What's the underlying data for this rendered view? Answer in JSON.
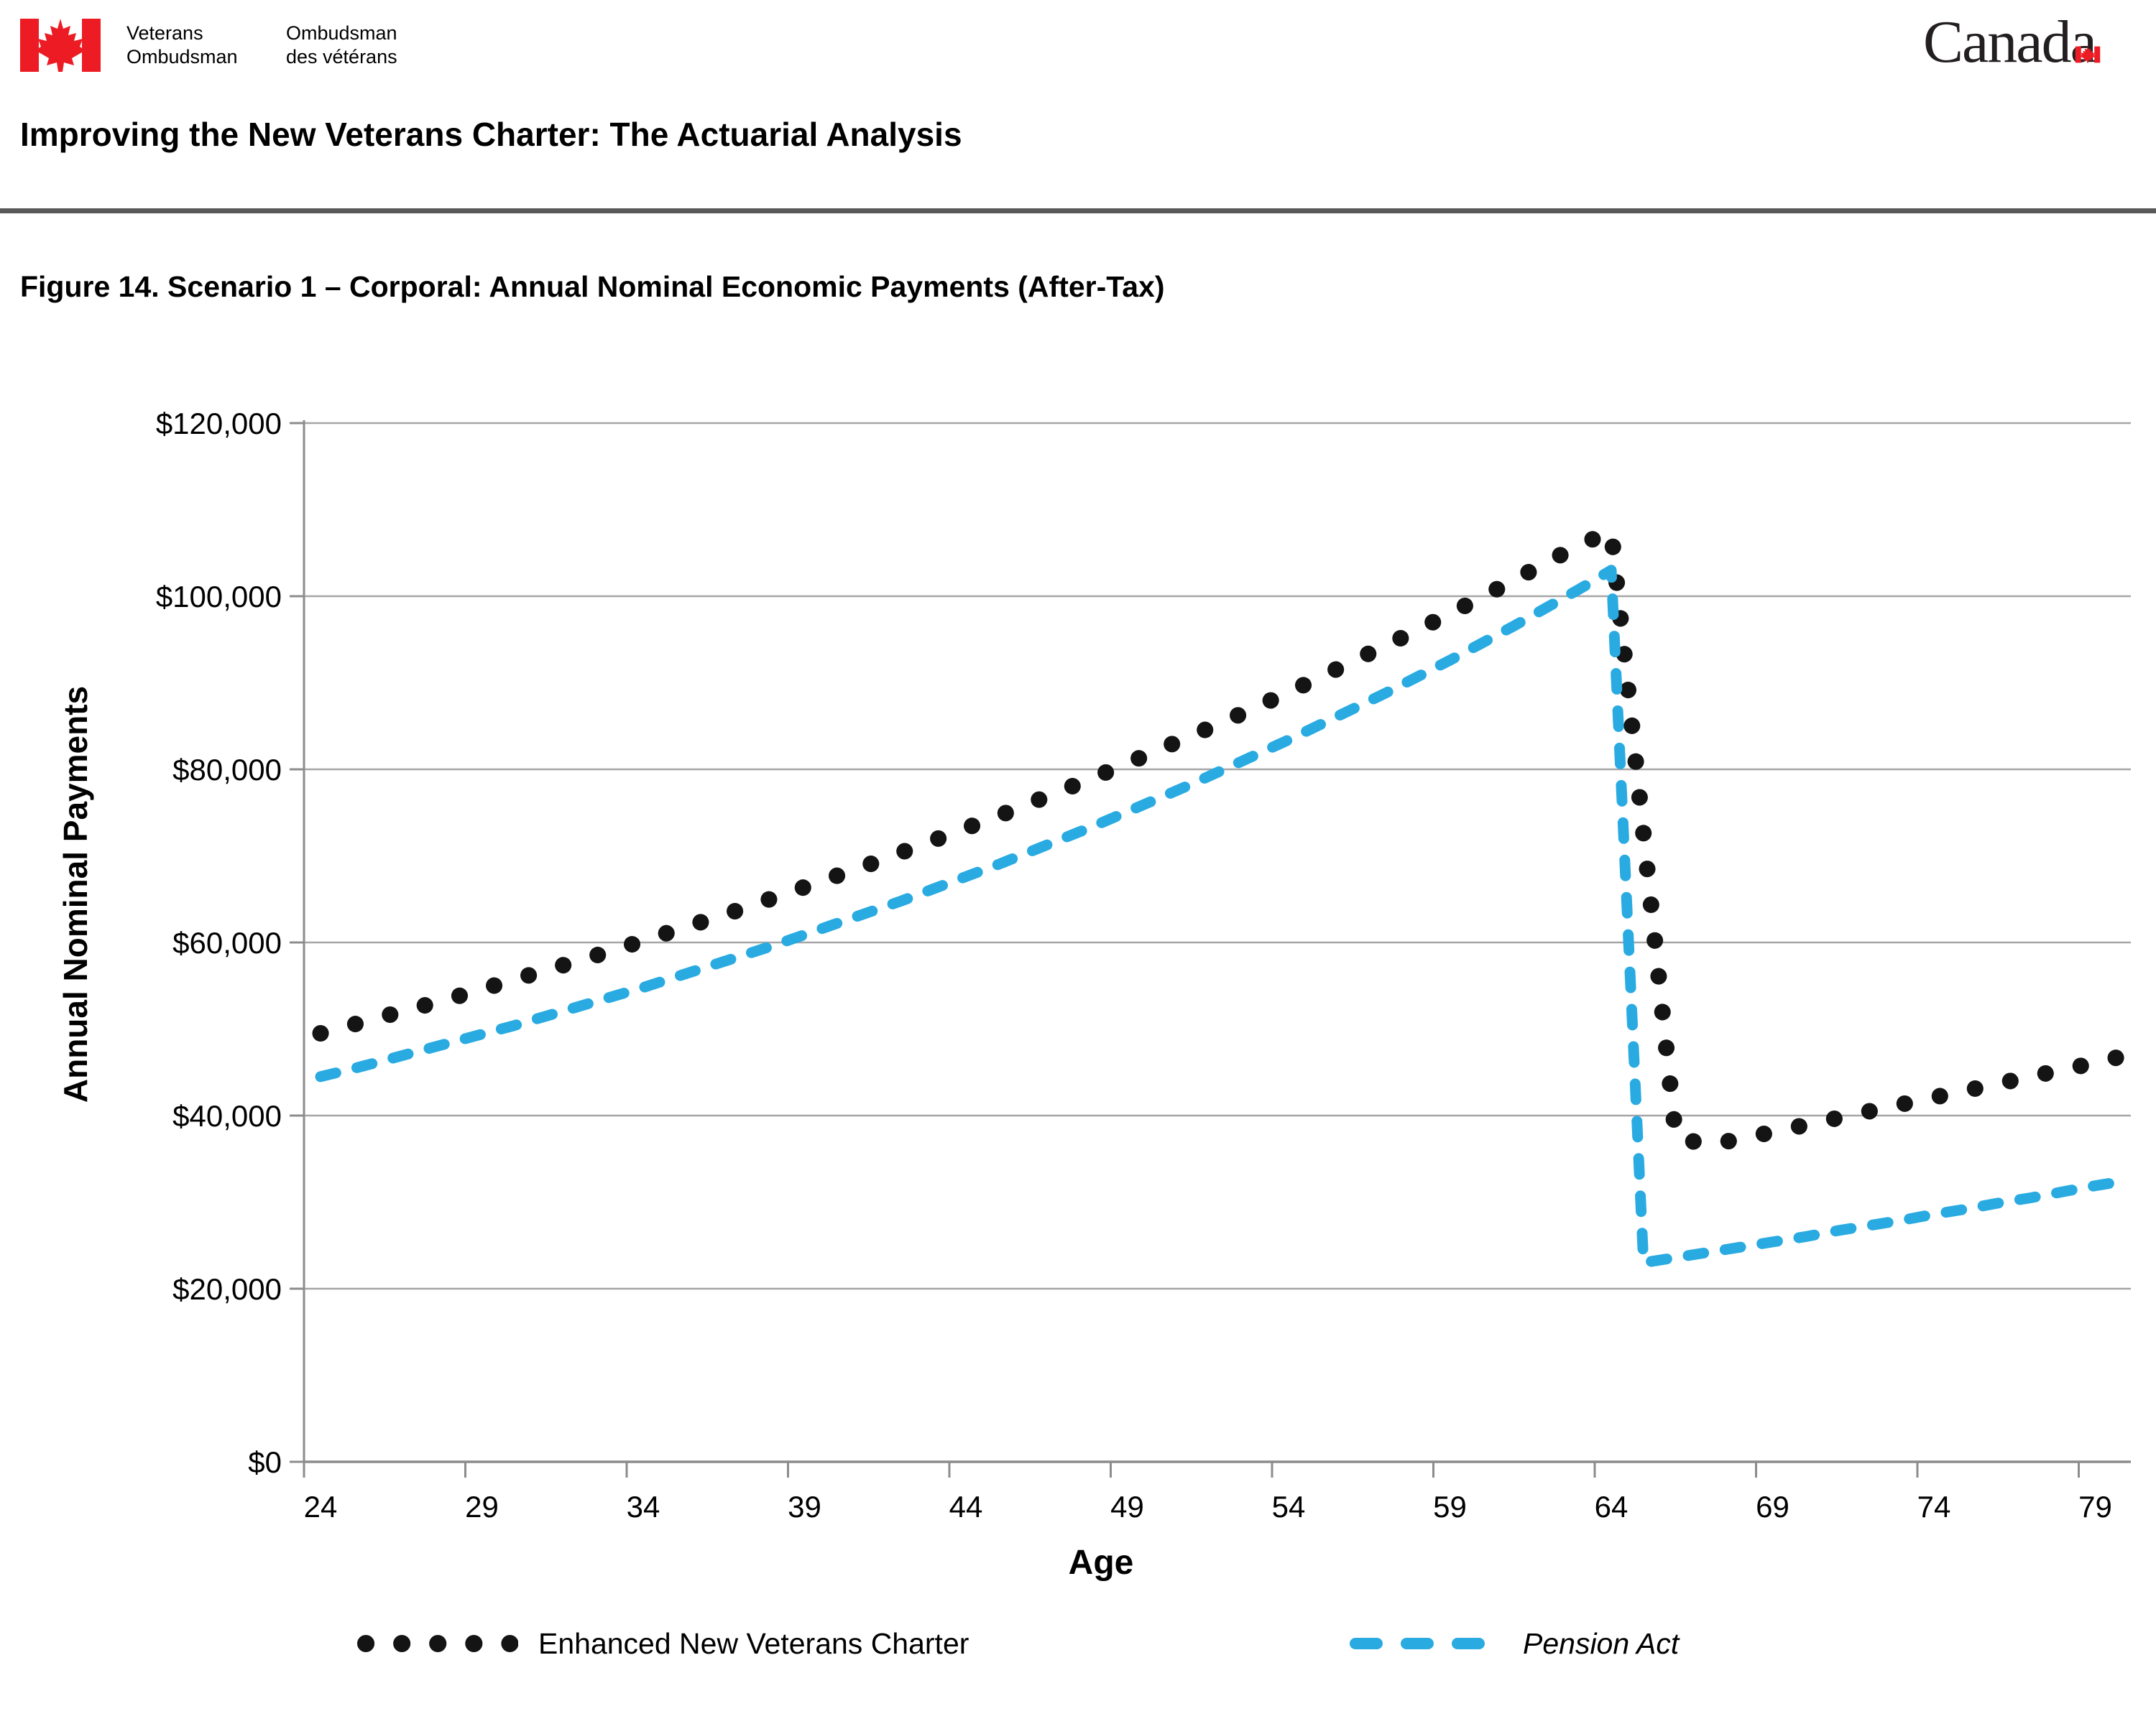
{
  "header": {
    "logo": {
      "en_line1": "Veterans",
      "en_line2": "Ombudsman",
      "fr_line1": "Ombudsman",
      "fr_line2": "des vétérans"
    },
    "wordmark": "Canada"
  },
  "title": "Improving the New Veterans Charter: The Actuarial Analysis",
  "figure_caption": "Figure 14. Scenario 1 – Corporal: Annual Nominal Economic Payments (After-Tax)",
  "colors": {
    "series_envc": "#141414",
    "series_pension_act": "#29ABE2",
    "gridline": "#A6A6A6",
    "axis": "#8C8C8C",
    "flag_red": "#ED1C24",
    "rule_gray": "#595959"
  },
  "chart_data": {
    "type": "line",
    "title": "",
    "xlabel": "Age",
    "ylabel": "Annual Nominal Payments",
    "grid": true,
    "legend_position": "bottom",
    "xlim": [
      24,
      80
    ],
    "ylim": [
      0,
      120000
    ],
    "x_tick_labels": [
      "24",
      "29",
      "34",
      "39",
      "44",
      "49",
      "54",
      "59",
      "64",
      "69",
      "74",
      "79"
    ],
    "y_tick_values": [
      0,
      20000,
      40000,
      60000,
      80000,
      100000,
      120000
    ],
    "y_tick_labels": [
      "$0",
      "$20,000",
      "$40,000",
      "$60,000",
      "$80,000",
      "$100,000",
      "$120,000"
    ],
    "x": [
      24,
      25,
      26,
      27,
      28,
      29,
      30,
      31,
      32,
      33,
      34,
      35,
      36,
      37,
      38,
      39,
      40,
      41,
      42,
      43,
      44,
      45,
      46,
      47,
      48,
      49,
      50,
      51,
      52,
      53,
      54,
      55,
      56,
      57,
      58,
      59,
      60,
      61,
      62,
      63,
      64,
      65,
      66,
      67,
      68,
      69,
      70,
      71,
      72,
      73,
      74,
      75,
      76,
      77,
      78,
      79,
      80
    ],
    "series": [
      {
        "name": "Enhanced New Veterans Charter",
        "color": "#141414",
        "style": "round-dot",
        "values": [
          49500,
          50500,
          51500,
          52500,
          53500,
          54600,
          55700,
          56800,
          57900,
          59000,
          60200,
          61400,
          62600,
          63800,
          65100,
          66400,
          67700,
          69000,
          70400,
          71800,
          73200,
          74600,
          76100,
          77600,
          79100,
          80700,
          82300,
          83900,
          85500,
          87200,
          88900,
          90700,
          92500,
          94300,
          96100,
          98000,
          99900,
          101900,
          103900,
          105900,
          107500,
          72500,
          37500,
          36600,
          37300,
          38100,
          38900,
          39700,
          40500,
          41300,
          42100,
          42900,
          43700,
          44500,
          45300,
          46100,
          47000
        ]
      },
      {
        "name": "Pension Act",
        "color": "#29ABE2",
        "style": "dashed",
        "values": [
          44500,
          45400,
          46400,
          47400,
          48400,
          49400,
          50400,
          51500,
          52600,
          53700,
          54800,
          56000,
          57200,
          58400,
          59600,
          60900,
          62200,
          63500,
          64800,
          66200,
          67600,
          69000,
          70500,
          72000,
          73500,
          75100,
          76700,
          78300,
          80000,
          81700,
          83400,
          85200,
          87000,
          88800,
          90700,
          92600,
          94600,
          96600,
          98700,
          100800,
          103000,
          23000,
          23600,
          24200,
          24800,
          25400,
          26000,
          26700,
          27300,
          27900,
          28600,
          29200,
          29900,
          30500,
          31200,
          31900,
          32500
        ]
      }
    ]
  }
}
